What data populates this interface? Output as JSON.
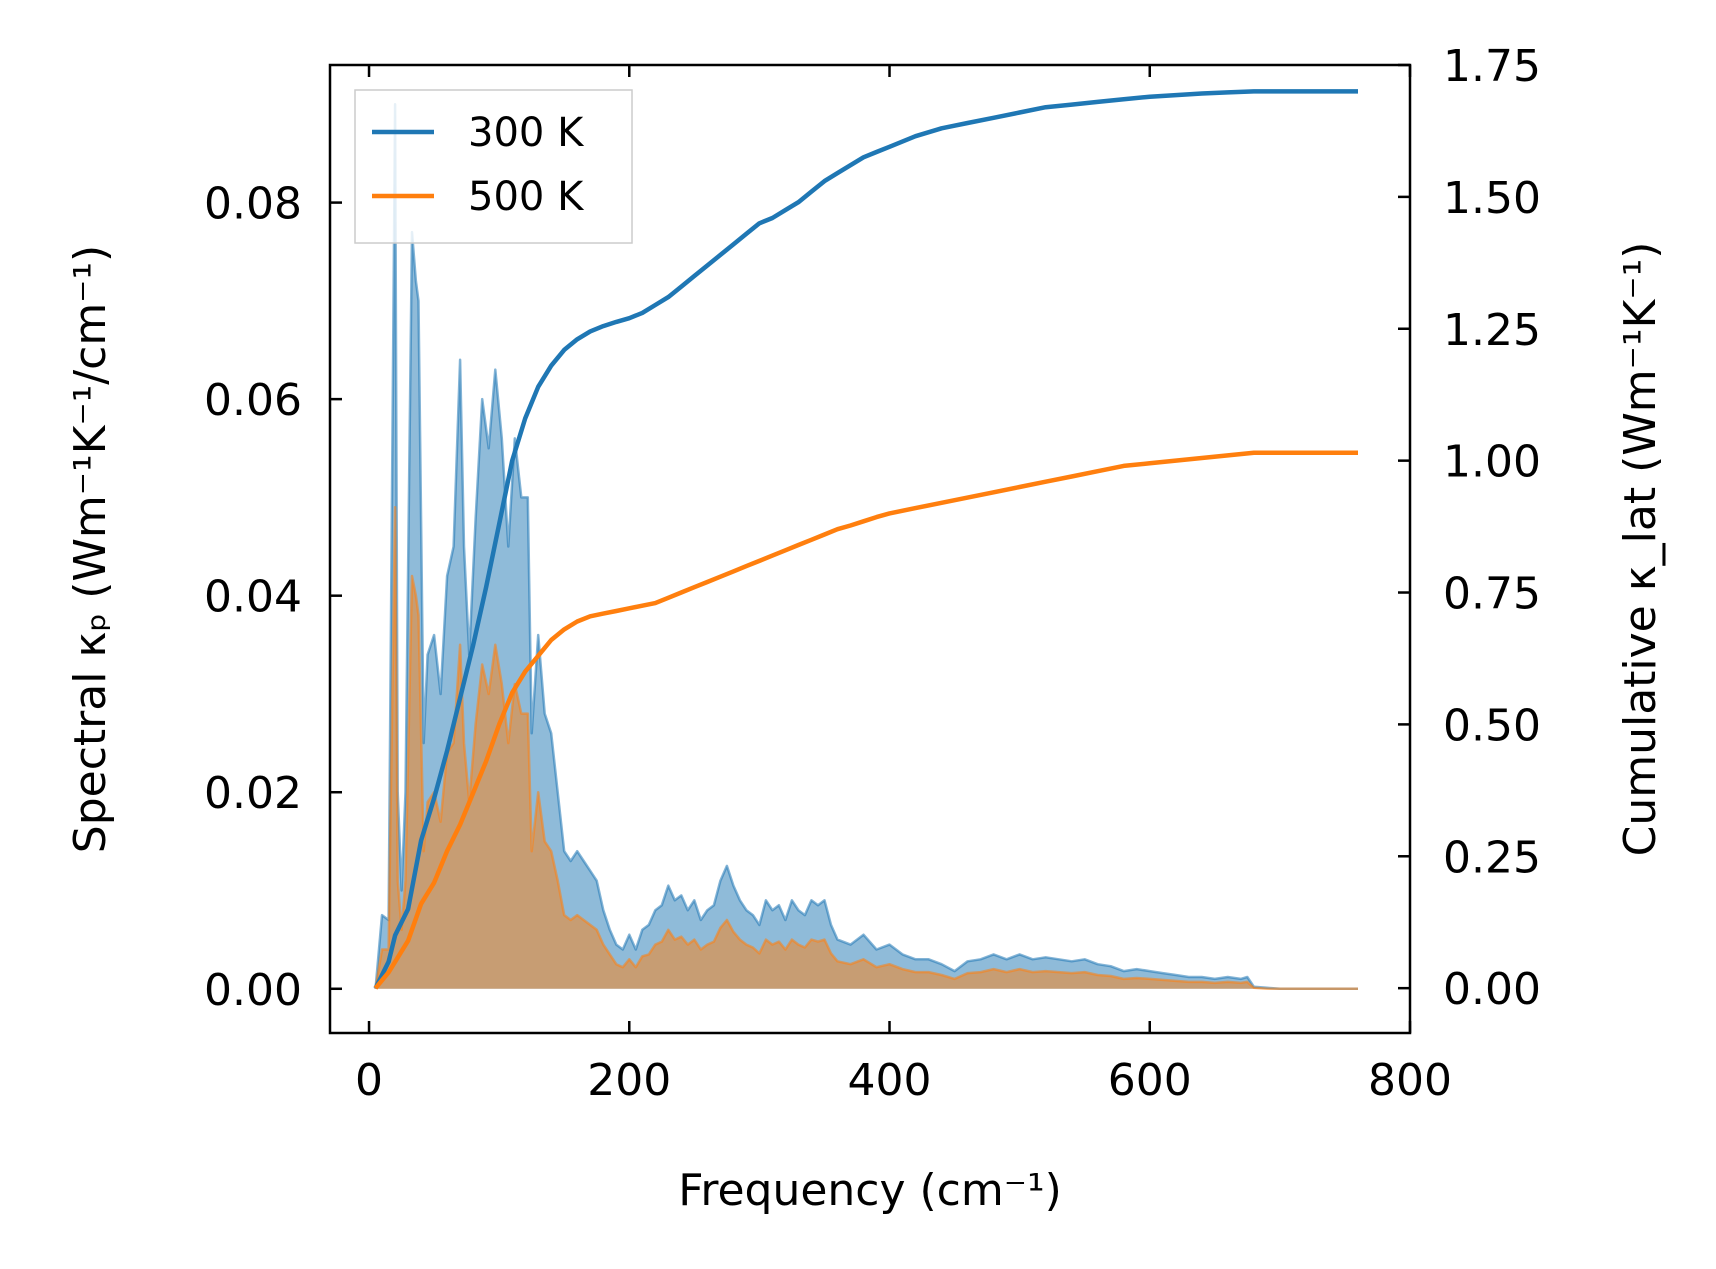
{
  "chart_data": {
    "type": "line",
    "title": "",
    "xlabel": "Frequency (cm⁻¹)",
    "ylabel_left": "Spectral κₚ (Wm⁻¹K⁻¹/cm⁻¹)",
    "ylabel_right": "Cumulative κ_lat (Wm⁻¹K⁻¹)",
    "xlim": [
      -30,
      800
    ],
    "ylim_left": [
      -0.0045,
      0.094
    ],
    "ylim_right": [
      -0.085,
      1.75
    ],
    "xticks": [
      0,
      200,
      400,
      600,
      800
    ],
    "yticks_left": [
      0.0,
      0.02,
      0.04,
      0.06,
      0.08
    ],
    "yticks_right": [
      0.0,
      0.25,
      0.5,
      0.75,
      1.0,
      1.25,
      1.5,
      1.75
    ],
    "xtick_labels": [
      "0",
      "200",
      "400",
      "600",
      "800"
    ],
    "ytick_labels_left": [
      "0.00",
      "0.02",
      "0.04",
      "0.06",
      "0.08"
    ],
    "ytick_labels_right": [
      "0.00",
      "0.25",
      "0.50",
      "0.75",
      "1.00",
      "1.25",
      "1.50",
      "1.75"
    ],
    "legend": {
      "position": "top-left",
      "entries": [
        "300 K",
        "500 K"
      ]
    },
    "grid": false,
    "colors": {
      "300 K": "#1f77b4",
      "500 K": "#ff7f0e",
      "fill_300": "#1f77b4",
      "fill_500": "#ff7f0e"
    },
    "spectral_series": [
      {
        "name": "300 K",
        "x": [
          5,
          10,
          15,
          20,
          22,
          25,
          28,
          33,
          36,
          38,
          42,
          45,
          50,
          55,
          60,
          65,
          70,
          73,
          77,
          82,
          87,
          92,
          97,
          102,
          107,
          112,
          117,
          122,
          125,
          130,
          135,
          140,
          145,
          150,
          155,
          160,
          165,
          170,
          175,
          180,
          185,
          190,
          195,
          200,
          205,
          210,
          215,
          220,
          225,
          230,
          235,
          240,
          245,
          250,
          255,
          260,
          265,
          270,
          275,
          280,
          285,
          290,
          295,
          300,
          305,
          310,
          315,
          320,
          325,
          330,
          335,
          340,
          345,
          350,
          355,
          360,
          370,
          380,
          390,
          400,
          410,
          420,
          430,
          440,
          450,
          460,
          470,
          480,
          490,
          500,
          510,
          520,
          530,
          540,
          550,
          560,
          570,
          580,
          590,
          600,
          610,
          620,
          630,
          640,
          650,
          660,
          670,
          675,
          680,
          690,
          700,
          720,
          740,
          760
        ],
        "values": [
          0.0,
          0.0075,
          0.007,
          0.09,
          0.02,
          0.01,
          0.02,
          0.077,
          0.072,
          0.07,
          0.025,
          0.034,
          0.036,
          0.03,
          0.042,
          0.045,
          0.064,
          0.045,
          0.034,
          0.048,
          0.06,
          0.055,
          0.063,
          0.056,
          0.045,
          0.056,
          0.05,
          0.05,
          0.026,
          0.036,
          0.028,
          0.026,
          0.02,
          0.014,
          0.013,
          0.014,
          0.013,
          0.012,
          0.011,
          0.008,
          0.006,
          0.0045,
          0.004,
          0.0055,
          0.004,
          0.006,
          0.0065,
          0.008,
          0.0085,
          0.0105,
          0.009,
          0.0095,
          0.008,
          0.009,
          0.007,
          0.008,
          0.0085,
          0.011,
          0.0125,
          0.0105,
          0.009,
          0.008,
          0.0075,
          0.0065,
          0.009,
          0.008,
          0.0085,
          0.007,
          0.009,
          0.008,
          0.0075,
          0.009,
          0.0085,
          0.009,
          0.0065,
          0.005,
          0.0045,
          0.0055,
          0.004,
          0.0045,
          0.0035,
          0.003,
          0.003,
          0.0025,
          0.0018,
          0.0028,
          0.003,
          0.0035,
          0.003,
          0.0035,
          0.003,
          0.0032,
          0.003,
          0.0028,
          0.003,
          0.0025,
          0.0023,
          0.0018,
          0.002,
          0.0018,
          0.0016,
          0.0014,
          0.0012,
          0.0012,
          0.001,
          0.0012,
          0.001,
          0.0012,
          0.0002,
          0.0001,
          0.0,
          0.0,
          0.0,
          0.0
        ]
      },
      {
        "name": "500 K",
        "x": [
          5,
          10,
          15,
          20,
          22,
          25,
          28,
          33,
          36,
          38,
          42,
          45,
          50,
          55,
          60,
          65,
          70,
          73,
          77,
          82,
          87,
          92,
          97,
          102,
          107,
          112,
          117,
          122,
          125,
          130,
          135,
          140,
          145,
          150,
          155,
          160,
          165,
          170,
          175,
          180,
          185,
          190,
          195,
          200,
          205,
          210,
          215,
          220,
          225,
          230,
          235,
          240,
          245,
          250,
          255,
          260,
          265,
          270,
          275,
          280,
          285,
          290,
          295,
          300,
          305,
          310,
          315,
          320,
          325,
          330,
          335,
          340,
          345,
          350,
          355,
          360,
          370,
          380,
          390,
          400,
          410,
          420,
          430,
          440,
          450,
          460,
          470,
          480,
          490,
          500,
          510,
          520,
          530,
          540,
          550,
          560,
          570,
          580,
          590,
          600,
          610,
          620,
          630,
          640,
          650,
          660,
          670,
          675,
          680,
          690,
          700,
          720,
          740,
          760
        ],
        "values": [
          0.0,
          0.004,
          0.004,
          0.049,
          0.011,
          0.006,
          0.011,
          0.042,
          0.04,
          0.038,
          0.014,
          0.019,
          0.02,
          0.017,
          0.024,
          0.025,
          0.035,
          0.025,
          0.019,
          0.027,
          0.033,
          0.03,
          0.035,
          0.031,
          0.025,
          0.031,
          0.028,
          0.028,
          0.014,
          0.02,
          0.015,
          0.014,
          0.011,
          0.0075,
          0.007,
          0.0075,
          0.007,
          0.0065,
          0.006,
          0.0045,
          0.0035,
          0.0025,
          0.0022,
          0.003,
          0.0022,
          0.0033,
          0.0035,
          0.0045,
          0.0048,
          0.006,
          0.005,
          0.0053,
          0.0045,
          0.005,
          0.004,
          0.0045,
          0.0048,
          0.0062,
          0.007,
          0.0058,
          0.005,
          0.0045,
          0.0042,
          0.0036,
          0.005,
          0.0045,
          0.0048,
          0.004,
          0.005,
          0.0045,
          0.0042,
          0.005,
          0.0048,
          0.005,
          0.0036,
          0.0028,
          0.0025,
          0.003,
          0.0022,
          0.0025,
          0.002,
          0.0017,
          0.0017,
          0.0014,
          0.001,
          0.0016,
          0.0017,
          0.002,
          0.0017,
          0.002,
          0.0017,
          0.0018,
          0.0017,
          0.0016,
          0.0017,
          0.0014,
          0.0013,
          0.001,
          0.0011,
          0.001,
          0.0009,
          0.0008,
          0.0007,
          0.0007,
          0.0006,
          0.0007,
          0.0006,
          0.0007,
          0.0001,
          0.0,
          0.0,
          0.0,
          0.0,
          0.0
        ]
      }
    ],
    "cumulative_series": [
      {
        "name": "300 K",
        "x": [
          5,
          15,
          20,
          30,
          40,
          50,
          60,
          70,
          80,
          90,
          100,
          110,
          120,
          130,
          140,
          150,
          160,
          170,
          180,
          190,
          200,
          210,
          220,
          230,
          240,
          250,
          260,
          270,
          280,
          290,
          300,
          310,
          320,
          330,
          340,
          350,
          360,
          370,
          380,
          390,
          400,
          420,
          440,
          460,
          480,
          500,
          520,
          540,
          560,
          580,
          600,
          620,
          640,
          660,
          680,
          700,
          720,
          740,
          760
        ],
        "values": [
          0.0,
          0.05,
          0.1,
          0.15,
          0.28,
          0.36,
          0.45,
          0.55,
          0.65,
          0.76,
          0.88,
          1.0,
          1.08,
          1.14,
          1.18,
          1.21,
          1.23,
          1.245,
          1.255,
          1.263,
          1.27,
          1.28,
          1.295,
          1.31,
          1.33,
          1.35,
          1.37,
          1.39,
          1.41,
          1.43,
          1.45,
          1.46,
          1.475,
          1.49,
          1.51,
          1.53,
          1.545,
          1.56,
          1.575,
          1.585,
          1.595,
          1.615,
          1.63,
          1.64,
          1.65,
          1.66,
          1.67,
          1.675,
          1.68,
          1.685,
          1.69,
          1.693,
          1.696,
          1.698,
          1.7,
          1.7,
          1.7,
          1.7,
          1.7
        ]
      },
      {
        "name": "500 K",
        "x": [
          5,
          15,
          20,
          30,
          40,
          50,
          60,
          70,
          80,
          90,
          100,
          110,
          120,
          130,
          140,
          150,
          160,
          170,
          180,
          190,
          200,
          210,
          220,
          230,
          240,
          250,
          260,
          270,
          280,
          290,
          300,
          310,
          320,
          330,
          340,
          350,
          360,
          370,
          380,
          390,
          400,
          420,
          440,
          460,
          480,
          500,
          520,
          540,
          560,
          580,
          600,
          620,
          640,
          660,
          680,
          700,
          720,
          740,
          760
        ],
        "values": [
          0.0,
          0.03,
          0.05,
          0.09,
          0.16,
          0.2,
          0.26,
          0.31,
          0.37,
          0.43,
          0.5,
          0.56,
          0.6,
          0.63,
          0.66,
          0.68,
          0.695,
          0.705,
          0.71,
          0.715,
          0.72,
          0.725,
          0.73,
          0.74,
          0.75,
          0.76,
          0.77,
          0.78,
          0.79,
          0.8,
          0.81,
          0.82,
          0.83,
          0.84,
          0.85,
          0.86,
          0.87,
          0.877,
          0.885,
          0.893,
          0.9,
          0.91,
          0.92,
          0.93,
          0.94,
          0.95,
          0.96,
          0.97,
          0.98,
          0.99,
          0.995,
          1.0,
          1.005,
          1.01,
          1.015,
          1.015,
          1.015,
          1.015,
          1.015
        ]
      }
    ]
  }
}
